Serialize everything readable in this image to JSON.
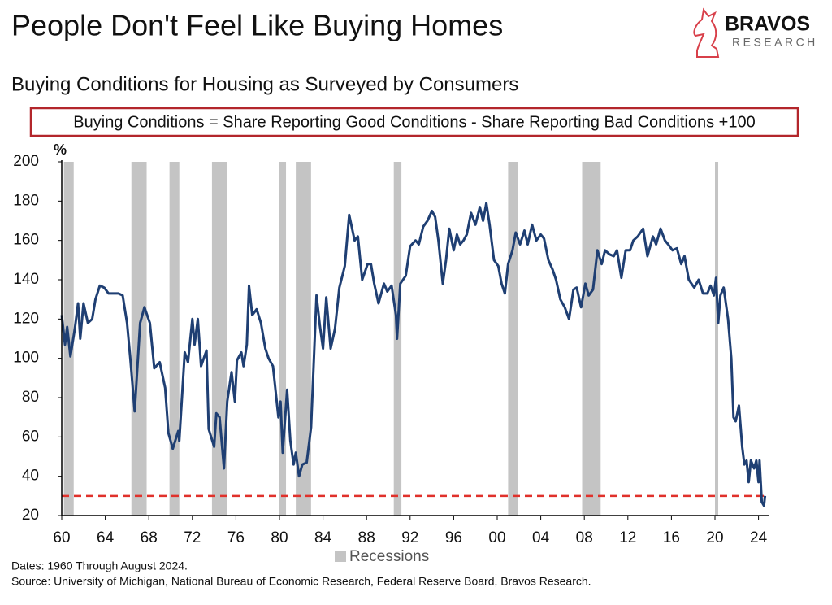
{
  "brand": {
    "name": "BRAVOS",
    "tagline": "RESEARCH"
  },
  "chart_data": {
    "type": "line",
    "title": "People Don't Feel Like Buying Homes",
    "subtitle": "Buying Conditions for Housing as Surveyed by Consumers",
    "annotation": "Buying Conditions = Share Reporting Good Conditions - Share Reporting Bad Conditions +100",
    "y_label": "%",
    "notes": [
      "Dates: 1960 Through August 2024.",
      "Source: University of Michigan, National Bureau of Economic Research, Federal Reserve Board, Bravos Research."
    ],
    "xlim": [
      1960,
      2025
    ],
    "ylim": [
      20,
      200
    ],
    "yticks": [
      20,
      40,
      60,
      80,
      100,
      120,
      140,
      160,
      180,
      200
    ],
    "xticks": [
      {
        "value": 1960,
        "label": "60"
      },
      {
        "value": 1964,
        "label": "64"
      },
      {
        "value": 1968,
        "label": "68"
      },
      {
        "value": 1972,
        "label": "72"
      },
      {
        "value": 1976,
        "label": "76"
      },
      {
        "value": 1980,
        "label": "80"
      },
      {
        "value": 1984,
        "label": "84"
      },
      {
        "value": 1988,
        "label": "88"
      },
      {
        "value": 1992,
        "label": "92"
      },
      {
        "value": 1996,
        "label": "96"
      },
      {
        "value": 2000,
        "label": "00"
      },
      {
        "value": 2004,
        "label": "04"
      },
      {
        "value": 2008,
        "label": "08"
      },
      {
        "value": 2012,
        "label": "12"
      },
      {
        "value": 2016,
        "label": "16"
      },
      {
        "value": 2020,
        "label": "20"
      },
      {
        "value": 2024,
        "label": "24"
      }
    ],
    "grid": false,
    "reference_line": {
      "value": 30,
      "color": "#e0312b"
    },
    "shaded_regions": {
      "name": "Recessions",
      "color": "#c4c4c4",
      "ranges": [
        [
          1960.2,
          1961.1
        ],
        [
          1966.4,
          1967.8
        ],
        [
          1969.9,
          1970.8
        ],
        [
          1973.8,
          1975.2
        ],
        [
          1980.0,
          1980.6
        ],
        [
          1981.5,
          1982.9
        ],
        [
          1990.5,
          1991.2
        ],
        [
          2001.0,
          2001.9
        ],
        [
          2007.8,
          2009.5
        ],
        [
          2020.0,
          2020.3
        ]
      ]
    },
    "x": [
      1960.0,
      1960.3,
      1960.5,
      1960.8,
      1961.2,
      1961.5,
      1961.7,
      1962.0,
      1962.4,
      1962.8,
      1963.1,
      1963.5,
      1963.9,
      1964.3,
      1964.8,
      1965.2,
      1965.6,
      1966.0,
      1966.3,
      1966.7,
      1967.2,
      1967.6,
      1968.1,
      1968.5,
      1969.0,
      1969.5,
      1969.8,
      1970.2,
      1970.7,
      1970.8,
      1971.3,
      1971.6,
      1972.0,
      1972.2,
      1972.5,
      1972.8,
      1973.3,
      1973.5,
      1974.0,
      1974.2,
      1974.5,
      1974.9,
      1975.2,
      1975.6,
      1975.9,
      1976.1,
      1976.5,
      1976.7,
      1977.0,
      1977.2,
      1977.5,
      1977.9,
      1978.3,
      1978.7,
      1979.0,
      1979.4,
      1979.9,
      1980.1,
      1980.3,
      1980.7,
      1981.0,
      1981.3,
      1981.5,
      1981.8,
      1982.1,
      1982.5,
      1982.9,
      1983.2,
      1983.4,
      1983.7,
      1984.0,
      1984.3,
      1984.7,
      1985.1,
      1985.5,
      1986.0,
      1986.4,
      1986.9,
      1987.2,
      1987.6,
      1988.1,
      1988.4,
      1988.7,
      1989.1,
      1989.6,
      1989.9,
      1990.3,
      1990.7,
      1990.8,
      1991.1,
      1991.6,
      1992.0,
      1992.5,
      1992.8,
      1993.2,
      1993.6,
      1994.0,
      1994.3,
      1994.6,
      1995.0,
      1995.3,
      1995.6,
      1996.0,
      1996.3,
      1996.6,
      1996.9,
      1997.2,
      1997.6,
      1998.0,
      1998.4,
      1998.7,
      1999.0,
      1999.3,
      1999.7,
      2000.1,
      2000.4,
      2000.7,
      2001.0,
      2001.4,
      2001.7,
      2002.1,
      2002.5,
      2002.8,
      2003.2,
      2003.6,
      2004.0,
      2004.3,
      2004.7,
      2005.1,
      2005.4,
      2005.8,
      2006.2,
      2006.6,
      2007.0,
      2007.3,
      2007.7,
      2008.1,
      2008.4,
      2008.8,
      2009.2,
      2009.6,
      2009.9,
      2010.3,
      2010.7,
      2011.0,
      2011.4,
      2011.8,
      2012.2,
      2012.5,
      2012.9,
      2013.4,
      2013.8,
      2014.3,
      2014.6,
      2015.0,
      2015.4,
      2015.7,
      2016.1,
      2016.5,
      2016.9,
      2017.2,
      2017.6,
      2018.1,
      2018.5,
      2018.9,
      2019.3,
      2019.6,
      2019.9,
      2020.1,
      2020.3,
      2020.5,
      2020.8,
      2021.2,
      2021.5,
      2021.7,
      2021.9,
      2022.2,
      2022.5,
      2022.7,
      2022.9,
      2023.1,
      2023.3,
      2023.6,
      2023.8,
      2024.0,
      2024.1,
      2024.3,
      2024.5,
      2024.6
    ],
    "series": [
      {
        "color": "#1f3f73",
        "values": [
          122,
          107,
          116,
          101,
          115,
          128,
          110,
          128,
          118,
          120,
          130,
          137,
          136,
          133,
          133,
          133,
          132,
          118,
          100,
          73,
          118,
          126,
          118,
          95,
          98,
          85,
          62,
          54,
          63,
          58,
          103,
          98,
          120,
          107,
          120,
          96,
          104,
          64,
          55,
          72,
          70,
          44,
          78,
          93,
          78,
          99,
          103,
          96,
          107,
          137,
          122,
          125,
          118,
          105,
          100,
          96,
          70,
          78,
          52,
          84,
          58,
          46,
          52,
          40,
          46,
          47,
          65,
          105,
          132,
          117,
          105,
          131,
          105,
          115,
          136,
          147,
          173,
          160,
          162,
          140,
          148,
          148,
          138,
          128,
          138,
          134,
          137,
          122,
          110,
          138,
          142,
          157,
          160,
          158,
          167,
          170,
          175,
          172,
          160,
          138,
          150,
          166,
          155,
          163,
          158,
          160,
          163,
          174,
          168,
          177,
          170,
          179,
          168,
          150,
          147,
          138,
          133,
          148,
          155,
          164,
          158,
          165,
          158,
          168,
          160,
          163,
          161,
          150,
          145,
          140,
          130,
          126,
          120,
          135,
          136,
          126,
          138,
          132,
          135,
          155,
          148,
          155,
          153,
          152,
          155,
          141,
          155,
          155,
          160,
          162,
          166,
          152,
          162,
          158,
          166,
          160,
          158,
          155,
          156,
          148,
          152,
          140,
          136,
          140,
          133,
          133,
          137,
          132,
          141,
          118,
          132,
          136,
          120,
          100,
          70,
          68,
          76,
          55,
          46,
          48,
          37,
          48,
          44,
          48,
          37,
          48,
          27,
          25,
          30
        ]
      }
    ]
  }
}
